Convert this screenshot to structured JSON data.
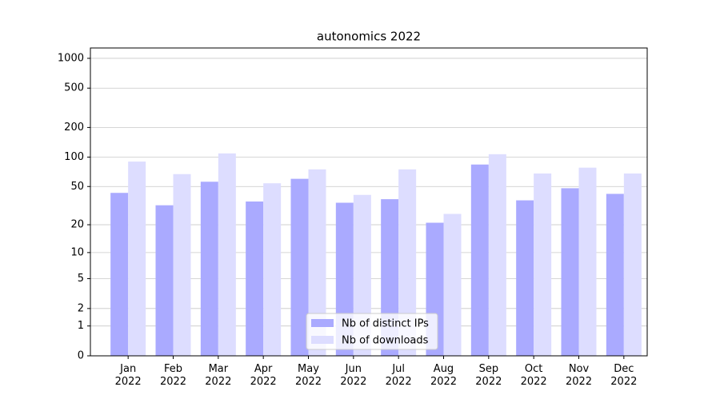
{
  "chart_data": {
    "type": "bar",
    "title": "autonomics 2022",
    "categories": [
      "Jan\n2022",
      "Feb\n2022",
      "Mar\n2022",
      "Apr\n2022",
      "May\n2022",
      "Jun\n2022",
      "Jul\n2022",
      "Aug\n2022",
      "Sep\n2022",
      "Oct\n2022",
      "Nov\n2022",
      "Dec\n2022"
    ],
    "series": [
      {
        "name": "Nb of distinct IPs",
        "color": "#aaaaff",
        "values": [
          43,
          32,
          56,
          35,
          60,
          34,
          37,
          21,
          84,
          36,
          48,
          42
        ]
      },
      {
        "name": "Nb of downloads",
        "color": "#ddddff",
        "values": [
          90,
          67,
          109,
          54,
          75,
          41,
          75,
          26,
          107,
          68,
          78,
          68
        ]
      }
    ],
    "scale": "log1p",
    "ylim": [
      0,
      1272
    ],
    "yticks": [
      0,
      1,
      2,
      5,
      10,
      20,
      50,
      100,
      200,
      500,
      1000
    ],
    "grid": true,
    "legend": "lower center"
  }
}
